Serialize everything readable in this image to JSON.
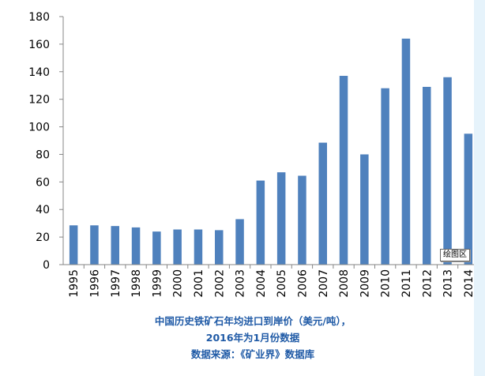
{
  "chart_data": {
    "type": "bar",
    "categories": [
      "1995",
      "1996",
      "1997",
      "1998",
      "1999",
      "2000",
      "2001",
      "2002",
      "2003",
      "2004",
      "2005",
      "2006",
      "2007",
      "2008",
      "2009",
      "2010",
      "2011",
      "2012",
      "2013",
      "2014"
    ],
    "values": [
      28.5,
      28.5,
      28,
      27,
      24,
      25.5,
      25.5,
      25,
      33,
      61,
      67,
      64.5,
      88.5,
      137,
      80,
      128,
      164,
      129,
      136,
      95
    ],
    "ylim": [
      0,
      180
    ],
    "yticks": [
      "0",
      "20",
      "40",
      "60",
      "80",
      "100",
      "120",
      "140",
      "160",
      "180"
    ],
    "grid": false,
    "bar_color": "#4f81bd"
  },
  "tooltip": "绘图区",
  "caption": {
    "line1": "中国历史铁矿石年均进口到岸价（美元/吨），",
    "line2": "2016年为1月份数据",
    "line3": "数据来源：《矿业界》数据库"
  },
  "colors": {
    "caption": "#1f5aa6",
    "frame": "#e6f3fb"
  }
}
